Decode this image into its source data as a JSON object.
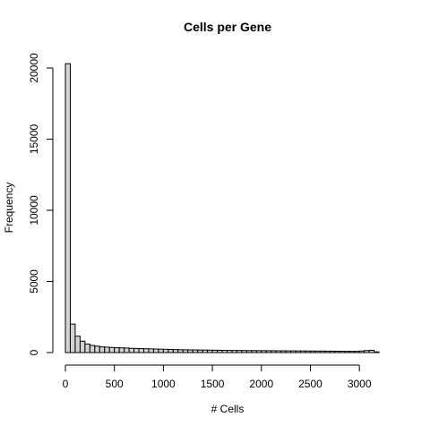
{
  "chart_data": {
    "type": "bar",
    "title": "Cells per Gene",
    "xlabel": "# Cells",
    "ylabel": "Frequency",
    "bin_width": 50,
    "x_start": 0,
    "xlim": [
      0,
      3300
    ],
    "ylim": [
      0,
      20250
    ],
    "x_ticks": [
      0,
      500,
      1000,
      1500,
      2000,
      2500,
      3000
    ],
    "y_ticks": [
      0,
      5000,
      10000,
      15000,
      20000
    ],
    "grid": false,
    "legend": "none",
    "colors": {
      "bar_fill": "#d3d3d3",
      "bar_stroke": "#000000"
    },
    "values": [
      20300,
      2000,
      1150,
      800,
      600,
      500,
      450,
      400,
      380,
      360,
      340,
      330,
      320,
      300,
      290,
      280,
      270,
      260,
      250,
      240,
      230,
      220,
      210,
      200,
      195,
      190,
      185,
      180,
      175,
      170,
      165,
      160,
      155,
      150,
      148,
      145,
      142,
      140,
      138,
      135,
      133,
      130,
      128,
      125,
      122,
      120,
      118,
      115,
      113,
      110,
      108,
      105,
      103,
      100,
      98,
      95,
      93,
      90,
      88,
      85,
      110,
      140,
      160,
      50
    ]
  }
}
